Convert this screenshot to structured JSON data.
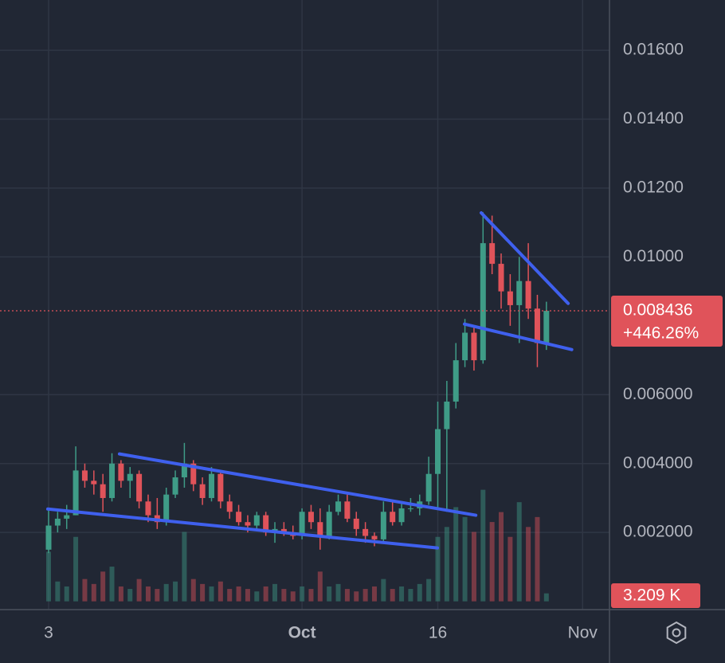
{
  "chart_data": {
    "type": "candlestick",
    "x": [
      0,
      1,
      2,
      3,
      4,
      5,
      6,
      7,
      8,
      9,
      10,
      11,
      12,
      13,
      14,
      15,
      16,
      17,
      18,
      19,
      20,
      21,
      22,
      23,
      24,
      25,
      26,
      27,
      28,
      29,
      30,
      31,
      32,
      33,
      34,
      35,
      36,
      37,
      38,
      39,
      40,
      41,
      42,
      43,
      44,
      45,
      46,
      47,
      48,
      49,
      50,
      51,
      52,
      53,
      54,
      55
    ],
    "open": [
      0.0015,
      0.0022,
      0.0024,
      0.0025,
      0.0038,
      0.0035,
      0.0034,
      0.003,
      0.004,
      0.0035,
      0.0037,
      0.0029,
      0.0025,
      0.0023,
      0.0031,
      0.0036,
      0.004,
      0.0034,
      0.003,
      0.0037,
      0.0029,
      0.0026,
      0.0023,
      0.0022,
      0.0025,
      0.002,
      0.0021,
      0.002,
      0.0019,
      0.0026,
      0.0023,
      0.0019,
      0.0026,
      0.0029,
      0.0024,
      0.0021,
      0.0019,
      0.0018,
      0.0026,
      0.0023,
      0.0027,
      0.0027,
      0.0029,
      0.0037,
      0.005,
      0.0058,
      0.007,
      0.0078,
      0.007,
      0.0104,
      0.0098,
      0.009,
      0.0086,
      0.0093,
      0.0085,
      0.0075
    ],
    "high": [
      0.0027,
      0.0026,
      0.0028,
      0.0045,
      0.004,
      0.0038,
      0.0037,
      0.0043,
      0.0041,
      0.0039,
      0.0038,
      0.0031,
      0.003,
      0.0033,
      0.0038,
      0.0046,
      0.0041,
      0.0036,
      0.0039,
      0.0038,
      0.0031,
      0.0028,
      0.0025,
      0.0026,
      0.0026,
      0.0023,
      0.0023,
      0.0022,
      0.0027,
      0.0028,
      0.0027,
      0.0028,
      0.0031,
      0.0031,
      0.0026,
      0.0023,
      0.002,
      0.0029,
      0.0029,
      0.0029,
      0.003,
      0.0031,
      0.0042,
      0.0058,
      0.0064,
      0.0075,
      0.0082,
      0.008,
      0.0113,
      0.0112,
      0.0101,
      0.0095,
      0.01,
      0.0104,
      0.0089,
      0.0087
    ],
    "low": [
      0.0014,
      0.002,
      0.0021,
      0.0025,
      0.0033,
      0.0031,
      0.0026,
      0.0029,
      0.0033,
      0.003,
      0.0027,
      0.0023,
      0.0021,
      0.0022,
      0.003,
      0.0033,
      0.0032,
      0.0028,
      0.0029,
      0.0027,
      0.0024,
      0.0022,
      0.002,
      0.0021,
      0.0019,
      0.0017,
      0.0019,
      0.0018,
      0.0018,
      0.0021,
      0.0015,
      0.0018,
      0.0025,
      0.0023,
      0.0019,
      0.0017,
      0.0016,
      0.0017,
      0.0022,
      0.0022,
      0.0026,
      0.0025,
      0.0028,
      0.0027,
      0.0026,
      0.0056,
      0.0068,
      0.0067,
      0.0069,
      0.0095,
      0.0085,
      0.008,
      0.0075,
      0.0082,
      0.0068,
      0.0073
    ],
    "close": [
      0.0022,
      0.0024,
      0.0025,
      0.0038,
      0.0035,
      0.0034,
      0.003,
      0.004,
      0.0035,
      0.0037,
      0.0029,
      0.0025,
      0.0023,
      0.0031,
      0.0036,
      0.004,
      0.0034,
      0.003,
      0.0037,
      0.0029,
      0.0026,
      0.0023,
      0.0022,
      0.0025,
      0.002,
      0.0021,
      0.002,
      0.0019,
      0.0026,
      0.0023,
      0.0019,
      0.0026,
      0.0029,
      0.0024,
      0.0021,
      0.0019,
      0.0018,
      0.0026,
      0.0023,
      0.0027,
      0.0027,
      0.0029,
      0.0037,
      0.005,
      0.0058,
      0.007,
      0.0078,
      0.007,
      0.0104,
      0.0098,
      0.009,
      0.0086,
      0.0093,
      0.0085,
      0.0075,
      0.008436
    ],
    "volume": {
      "values": [
        20000,
        8000,
        6000,
        26000,
        9000,
        7000,
        12000,
        14000,
        6000,
        5000,
        9000,
        6000,
        5000,
        7000,
        8000,
        28000,
        9000,
        7000,
        6000,
        8000,
        5000,
        6000,
        5000,
        4000,
        6000,
        7000,
        5000,
        4000,
        6000,
        5000,
        12000,
        6000,
        7000,
        5000,
        4000,
        5000,
        6000,
        9000,
        5000,
        6000,
        5000,
        7000,
        9000,
        26000,
        30000,
        38000,
        34000,
        28000,
        45000,
        32000,
        36000,
        26000,
        40000,
        30000,
        34000,
        3209
      ],
      "last_label": "3.209 K"
    },
    "change_label": "+446.26%",
    "up_color": "#3f9c87",
    "down_color": "#e0535a",
    "trend_color": "#3f60ee",
    "trendlines": [
      [
        [
          7.83,
          0.00428
        ],
        [
          47.2,
          0.0025
        ]
      ],
      [
        [
          -0.09,
          0.00268
        ],
        [
          42.96,
          0.00155
        ]
      ],
      [
        [
          47.8,
          0.01128
        ],
        [
          57.4,
          0.00865
        ]
      ],
      [
        [
          45.95,
          0.00805
        ],
        [
          57.8,
          0.00731
        ]
      ]
    ],
    "xlim": [
      -5.37,
      61.97
    ],
    "xticks": [
      {
        "value": 0,
        "label": "3"
      },
      {
        "value": 28,
        "label": "Oct"
      },
      {
        "value": 43,
        "label": "16"
      },
      {
        "value": 59,
        "label": "Nov"
      }
    ],
    "ylim": [
      -0.00024,
      0.01746
    ],
    "yticks": [
      {
        "value": 0.002,
        "label": "0.002000"
      },
      {
        "value": 0.004,
        "label": "0.004000"
      },
      {
        "value": 0.006,
        "label": "0.006000"
      },
      {
        "value": 0.01,
        "label": "0.01000"
      },
      {
        "value": 0.012,
        "label": "0.01200"
      },
      {
        "value": 0.014,
        "label": "0.01400"
      },
      {
        "value": 0.016,
        "label": "0.01600"
      }
    ],
    "grid": true
  }
}
